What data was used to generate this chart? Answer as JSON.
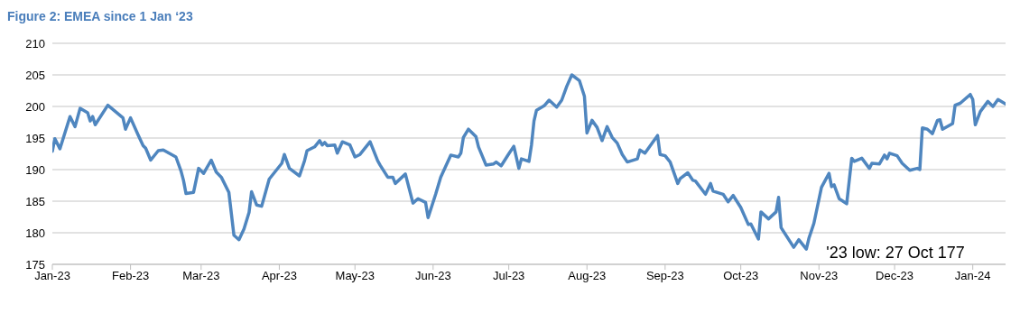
{
  "chart_data": {
    "type": "line",
    "title": "Figure 2: EMEA since 1 Jan ‘23",
    "x": [
      "2023-01-01",
      "2023-01-02",
      "2023-01-04",
      "2023-01-08",
      "2023-01-10",
      "2023-01-12",
      "2023-01-15",
      "2023-01-16",
      "2023-01-17",
      "2023-01-18",
      "2023-01-23",
      "2023-01-29",
      "2023-01-30",
      "2023-02-01",
      "2023-02-04",
      "2023-02-06",
      "2023-02-07",
      "2023-02-09",
      "2023-02-12",
      "2023-02-14",
      "2023-02-19",
      "2023-02-21",
      "2023-02-22",
      "2023-02-23",
      "2023-02-26",
      "2023-02-28",
      "2023-03-02",
      "2023-03-05",
      "2023-03-07",
      "2023-03-09",
      "2023-03-12",
      "2023-03-14",
      "2023-03-16",
      "2023-03-18",
      "2023-03-20",
      "2023-03-21",
      "2023-03-23",
      "2023-03-25",
      "2023-03-28",
      "2023-04-02",
      "2023-04-03",
      "2023-04-05",
      "2023-04-09",
      "2023-04-11",
      "2023-04-12",
      "2023-04-15",
      "2023-04-17",
      "2023-04-18",
      "2023-04-19",
      "2023-04-20",
      "2023-04-23",
      "2023-04-24",
      "2023-04-26",
      "2023-04-29",
      "2023-05-01",
      "2023-05-03",
      "2023-05-07",
      "2023-05-10",
      "2023-05-11",
      "2023-05-14",
      "2023-05-16",
      "2023-05-17",
      "2023-05-21",
      "2023-05-24",
      "2023-05-26",
      "2023-05-29",
      "2023-05-30",
      "2023-06-02",
      "2023-06-04",
      "2023-06-08",
      "2023-06-11",
      "2023-06-12",
      "2023-06-13",
      "2023-06-15",
      "2023-06-18",
      "2023-06-19",
      "2023-06-22",
      "2023-06-25",
      "2023-06-26",
      "2023-06-28",
      "2023-07-01",
      "2023-07-03",
      "2023-07-05",
      "2023-07-06",
      "2023-07-09",
      "2023-07-10",
      "2023-07-11",
      "2023-07-12",
      "2023-07-15",
      "2023-07-17",
      "2023-07-20",
      "2023-07-22",
      "2023-07-24",
      "2023-07-26",
      "2023-07-29",
      "2023-07-31",
      "2023-08-01",
      "2023-08-03",
      "2023-08-05",
      "2023-08-07",
      "2023-08-09",
      "2023-08-11",
      "2023-08-13",
      "2023-08-15",
      "2023-08-17",
      "2023-08-21",
      "2023-08-22",
      "2023-08-24",
      "2023-08-27",
      "2023-08-29",
      "2023-08-30",
      "2023-09-01",
      "2023-09-03",
      "2023-09-06",
      "2023-09-07",
      "2023-09-10",
      "2023-09-12",
      "2023-09-13",
      "2023-09-17",
      "2023-09-19",
      "2023-09-20",
      "2023-09-24",
      "2023-09-26",
      "2023-09-28",
      "2023-10-01",
      "2023-10-04",
      "2023-10-05",
      "2023-10-08",
      "2023-10-09",
      "2023-10-12",
      "2023-10-15",
      "2023-10-16",
      "2023-10-17",
      "2023-10-22",
      "2023-10-24",
      "2023-10-27",
      "2023-10-28",
      "2023-10-30",
      "2023-11-02",
      "2023-11-05",
      "2023-11-06",
      "2023-11-07",
      "2023-11-09",
      "2023-11-12",
      "2023-11-14",
      "2023-11-15",
      "2023-11-18",
      "2023-11-21",
      "2023-11-22",
      "2023-11-25",
      "2023-11-27",
      "2023-11-28",
      "2023-11-29",
      "2023-12-02",
      "2023-12-04",
      "2023-12-07",
      "2023-12-10",
      "2023-12-11",
      "2023-12-12",
      "2023-12-14",
      "2023-12-16",
      "2023-12-18",
      "2023-12-19",
      "2023-12-20",
      "2023-12-24",
      "2023-12-25",
      "2023-12-27",
      "2023-12-31",
      "2024-01-01",
      "2024-01-02",
      "2024-01-04",
      "2024-01-07",
      "2024-01-09",
      "2024-01-11",
      "2024-01-14"
    ],
    "series": [
      {
        "color": "#4f86bf",
        "values": [
          192.9,
          194.9,
          193.3,
          198.4,
          196.8,
          199.7,
          199.0,
          197.7,
          198.4,
          197.1,
          200.2,
          198.2,
          196.4,
          198.2,
          195.5,
          193.8,
          193.4,
          191.5,
          193.0,
          193.1,
          192.0,
          189.8,
          188.3,
          186.2,
          186.4,
          190.2,
          189.4,
          191.5,
          189.6,
          188.8,
          186.4,
          179.6,
          178.9,
          180.6,
          183.2,
          186.5,
          184.4,
          184.2,
          188.5,
          191.0,
          192.4,
          190.2,
          189.0,
          191.4,
          193.0,
          193.6,
          194.6,
          193.9,
          194.3,
          193.8,
          193.9,
          192.6,
          194.4,
          193.9,
          192.0,
          192.4,
          194.4,
          191.4,
          190.7,
          188.8,
          188.8,
          187.8,
          189.3,
          184.7,
          185.4,
          184.8,
          182.4,
          186.1,
          188.8,
          192.3,
          192.0,
          192.6,
          195.1,
          196.4,
          195.2,
          193.6,
          190.7,
          190.9,
          191.2,
          190.6,
          192.5,
          193.7,
          190.2,
          191.7,
          191.3,
          193.9,
          197.7,
          199.4,
          200.1,
          201.0,
          199.9,
          201.0,
          203.2,
          205.0,
          204.1,
          201.6,
          195.8,
          197.8,
          196.7,
          194.6,
          196.8,
          195.1,
          194.2,
          192.4,
          191.2,
          191.7,
          193.1,
          192.6,
          194.3,
          195.4,
          192.4,
          192.2,
          191.2,
          187.8,
          188.6,
          189.5,
          188.3,
          188.2,
          186.1,
          187.8,
          186.6,
          186.1,
          184.9,
          185.9,
          184.0,
          181.3,
          181.4,
          179.0,
          183.3,
          182.2,
          183.3,
          185.6,
          180.8,
          177.7,
          178.9,
          177.4,
          179.1,
          181.5,
          187.2,
          189.4,
          187.3,
          187.6,
          185.4,
          184.6,
          191.8,
          191.3,
          191.8,
          190.2,
          191.0,
          190.9,
          192.3,
          191.7,
          192.6,
          192.2,
          191.0,
          189.9,
          190.2,
          190.0,
          196.6,
          196.4,
          195.7,
          197.8,
          197.9,
          196.4,
          197.3,
          200.2,
          200.5,
          201.9,
          201.1,
          197.1,
          199.2,
          200.8,
          200.0,
          201.1,
          200.4
        ]
      }
    ],
    "xlim": [
      "2023-01-01",
      "2024-01-14"
    ],
    "xticks": [
      {
        "value": "2023-01-01",
        "label": "Jan-23"
      },
      {
        "value": "2023-02-01",
        "label": "Feb-23"
      },
      {
        "value": "2023-03-01",
        "label": "Mar-23"
      },
      {
        "value": "2023-04-01",
        "label": "Apr-23"
      },
      {
        "value": "2023-05-01",
        "label": "May-23"
      },
      {
        "value": "2023-06-01",
        "label": "Jun-23"
      },
      {
        "value": "2023-07-01",
        "label": "Jul-23"
      },
      {
        "value": "2023-08-01",
        "label": "Aug-23"
      },
      {
        "value": "2023-09-01",
        "label": "Sep-23"
      },
      {
        "value": "2023-10-01",
        "label": "Oct-23"
      },
      {
        "value": "2023-11-01",
        "label": "Nov-23"
      },
      {
        "value": "2023-12-01",
        "label": "Dec-23"
      },
      {
        "value": "2024-01-01",
        "label": "Jan-24"
      }
    ],
    "ylim": [
      175,
      210
    ],
    "yticks": [
      175,
      180,
      185,
      190,
      195,
      200,
      205,
      210
    ],
    "grid": "y",
    "marker": "none",
    "line_style": "solid",
    "annotations": [
      {
        "text": "'23 low: 27 Oct 177",
        "x": "2023-10-27",
        "y": 177
      }
    ]
  }
}
